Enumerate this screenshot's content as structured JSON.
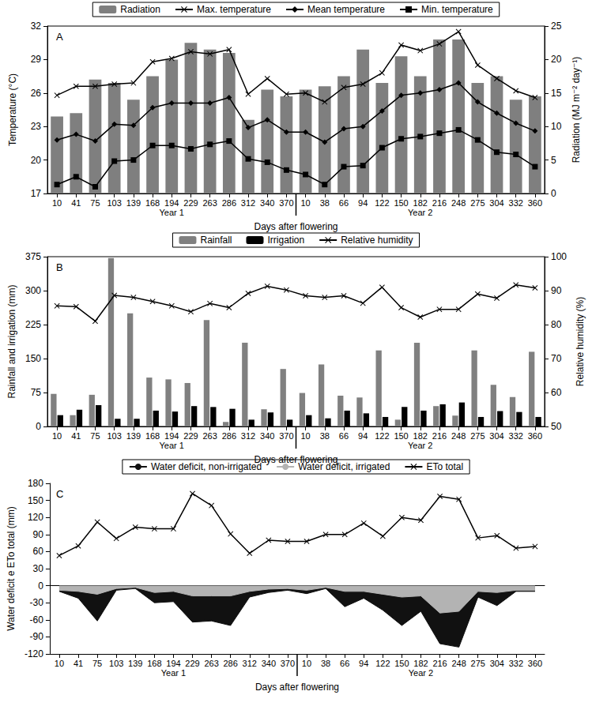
{
  "chart_data": [
    {
      "type": "combo",
      "title": "A",
      "categories": [
        "10",
        "41",
        "75",
        "103",
        "139",
        "168",
        "194",
        "229",
        "263",
        "286",
        "312",
        "340",
        "370",
        "10",
        "38",
        "66",
        "94",
        "122",
        "150",
        "182",
        "216",
        "248",
        "275",
        "304",
        "332",
        "360"
      ],
      "groups": [
        {
          "label": "Year 1",
          "count": 13
        },
        {
          "label": "Year 2",
          "count": 13
        }
      ],
      "x_label": "Days after flowering",
      "y_label": "Temperature (°C)",
      "y2_label": "Radiation (MJ m⁻² day⁻¹)",
      "ylim": [
        17,
        32
      ],
      "yticks": [
        17,
        20,
        23,
        26,
        29,
        32
      ],
      "y2lim": [
        0,
        25
      ],
      "y2ticks": [
        0,
        5,
        10,
        15,
        20,
        25
      ],
      "legend": "top",
      "series": [
        {
          "name": "Radiation",
          "type": "bar",
          "axis": "y2",
          "color": "#7f7f7f",
          "values": [
            11.5,
            12,
            17,
            16.5,
            14,
            17.5,
            20,
            22.5,
            21.5,
            21,
            11,
            15.5,
            14.5,
            15.5,
            16,
            17.5,
            21.5,
            16.5,
            20.5,
            17.5,
            23,
            23,
            16.5,
            17.5,
            14,
            14.5
          ]
        },
        {
          "name": "Max. temperature",
          "type": "line",
          "color": "#000000",
          "marker": "x",
          "values": [
            25.8,
            26.6,
            26.6,
            26.8,
            26.9,
            28.8,
            29.1,
            29.7,
            29.5,
            29.9,
            25.9,
            27.3,
            25.9,
            26.0,
            25.2,
            26.5,
            26.8,
            27.8,
            30.3,
            29.8,
            30.4,
            31.5,
            28.5,
            27.3,
            26.2,
            25.6
          ]
        },
        {
          "name": "Mean temperature",
          "type": "line",
          "color": "#000000",
          "marker": "diamond",
          "values": [
            21.8,
            22.3,
            21.7,
            23.2,
            23.1,
            24.7,
            25.1,
            25.1,
            25.1,
            25.6,
            22.9,
            23.6,
            22.5,
            22.5,
            21.6,
            22.8,
            23.0,
            24.4,
            25.8,
            26.0,
            26.3,
            26.9,
            25.2,
            24.2,
            23.3,
            22.6
          ]
        },
        {
          "name": "Min. temperature",
          "type": "line",
          "color": "#000000",
          "marker": "square",
          "values": [
            17.8,
            18.5,
            17.6,
            19.9,
            20.0,
            21.3,
            21.3,
            21.0,
            21.4,
            21.7,
            20.1,
            19.8,
            19.1,
            18.7,
            17.8,
            19.4,
            19.5,
            21.1,
            21.9,
            22.1,
            22.4,
            22.7,
            21.8,
            20.7,
            20.5,
            19.4
          ]
        }
      ]
    },
    {
      "type": "combo",
      "title": "B",
      "categories": [
        "10",
        "41",
        "75",
        "103",
        "139",
        "168",
        "194",
        "229",
        "263",
        "286",
        "312",
        "340",
        "370",
        "10",
        "38",
        "66",
        "94",
        "122",
        "150",
        "182",
        "216",
        "248",
        "275",
        "304",
        "332",
        "360"
      ],
      "groups": [
        {
          "label": "Year 1",
          "count": 13
        },
        {
          "label": "Year 2",
          "count": 13
        }
      ],
      "x_label": "Days after flowering",
      "y_label": "Rainfall and irrigation (mm)",
      "y2_label": "Relative humidity (%)",
      "ylim": [
        0,
        375
      ],
      "yticks": [
        0,
        75,
        150,
        225,
        300,
        375
      ],
      "y2lim": [
        50,
        100
      ],
      "y2ticks": [
        50,
        60,
        70,
        80,
        90,
        100
      ],
      "legend": "top",
      "series": [
        {
          "name": "Rainfall",
          "type": "bar",
          "color": "#808080",
          "values": [
            72,
            25,
            70,
            372,
            250,
            108,
            104,
            96,
            235,
            10,
            185,
            38,
            127,
            74,
            137,
            68,
            64,
            168,
            15,
            185,
            45,
            24,
            168,
            92,
            65,
            165
          ]
        },
        {
          "name": "Irrigation",
          "type": "bar",
          "color": "#000000",
          "values": [
            25,
            37,
            47,
            17,
            17,
            35,
            33,
            45,
            43,
            39,
            15,
            31,
            15,
            25,
            18,
            35,
            29,
            21,
            43,
            35,
            49,
            53,
            21,
            34,
            32,
            21
          ]
        },
        {
          "name": "Relative humidity",
          "type": "line",
          "axis": "y2",
          "color": "#000000",
          "marker": "x",
          "values": [
            85.5,
            85.3,
            81,
            88.6,
            88,
            86.8,
            85.5,
            83.8,
            86.2,
            85,
            89.2,
            91.3,
            90.2,
            88.5,
            88,
            88.5,
            86.3,
            91,
            85,
            82.2,
            84.5,
            84.5,
            89,
            87.8,
            91.7,
            90.8
          ]
        }
      ]
    },
    {
      "type": "combo",
      "title": "C",
      "categories": [
        "10",
        "41",
        "75",
        "103",
        "139",
        "168",
        "194",
        "229",
        "263",
        "286",
        "312",
        "340",
        "370",
        "10",
        "38",
        "66",
        "94",
        "122",
        "150",
        "182",
        "216",
        "248",
        "275",
        "304",
        "332",
        "360"
      ],
      "groups": [
        {
          "label": "Year 1",
          "count": 13
        },
        {
          "label": "Year 2",
          "count": 13
        }
      ],
      "x_label": "Days after flowering",
      "y_label": "Water deficit e ETo total (mm)",
      "ylim": [
        -120,
        180
      ],
      "yticks": [
        -120,
        -90,
        -60,
        -30,
        0,
        30,
        60,
        90,
        120,
        150,
        180
      ],
      "legend": "top",
      "series": [
        {
          "name": "Water deficit, non-irrigated",
          "type": "area",
          "color": "#111111",
          "values": [
            -10,
            -22,
            -62,
            -8,
            -5,
            -30,
            -28,
            -64,
            -62,
            -70,
            -20,
            -12,
            -8,
            -14,
            -5,
            -37,
            -22,
            -43,
            -70,
            -45,
            -102,
            -108,
            -20,
            -35,
            -10,
            -10
          ]
        },
        {
          "name": "Water deficit, irrigated",
          "type": "area",
          "color": "#b3b3b3",
          "values": [
            -8,
            -10,
            -15,
            -5,
            -3,
            -12,
            -10,
            -18,
            -18,
            -18,
            -10,
            -6,
            -5,
            -8,
            -3,
            -10,
            -10,
            -15,
            -20,
            -18,
            -48,
            -45,
            -10,
            -12,
            -8,
            -8
          ]
        },
        {
          "name": "ETo total",
          "type": "line",
          "color": "#000000",
          "marker": "x",
          "values": [
            53,
            70,
            112,
            83,
            103,
            100,
            100,
            162,
            141,
            91,
            57,
            80,
            78,
            78,
            90,
            90,
            110,
            87,
            120,
            115,
            157,
            152,
            84,
            88,
            66,
            69
          ]
        }
      ]
    }
  ]
}
